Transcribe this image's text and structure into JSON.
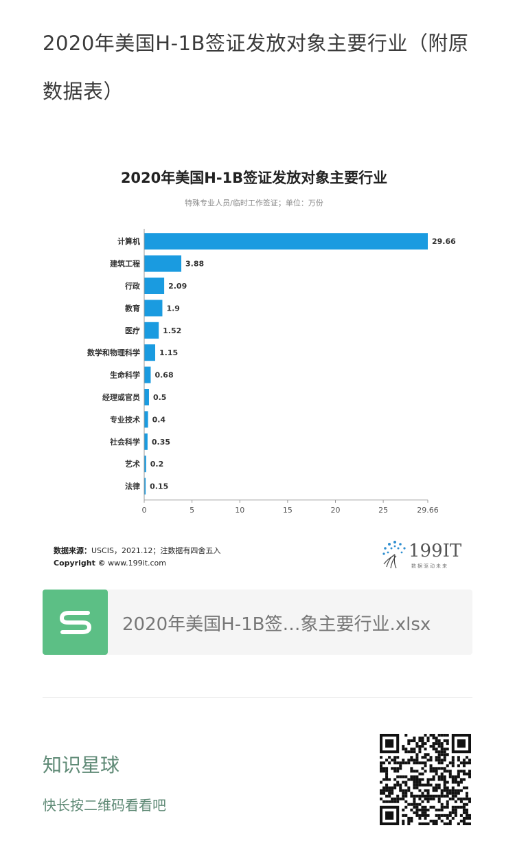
{
  "page": {
    "title": "2020年美国H-1B签证发放对象主要行业（附原数据表）"
  },
  "chart_data": {
    "type": "bar",
    "orientation": "horizontal",
    "title": "2020年美国H-1B签证发放对象主要行业",
    "subtitle": "特殊专业人员/临时工作签证；单位：万份",
    "categories": [
      "计算机",
      "建筑工程",
      "行政",
      "教育",
      "医疗",
      "数学和物理科学",
      "生命科学",
      "经理或官员",
      "专业技术",
      "社会科学",
      "艺术",
      "法律"
    ],
    "values": [
      29.66,
      3.88,
      2.09,
      1.9,
      1.52,
      1.15,
      0.68,
      0.5,
      0.4,
      0.35,
      0.2,
      0.15
    ],
    "value_labels": [
      "29.66",
      "3.88",
      "2.09",
      "1.9",
      "1.52",
      "1.15",
      "0.68",
      "0.5",
      "0.4",
      "0.35",
      "0.2",
      "0.15"
    ],
    "xticks": [
      "0",
      "5",
      "10",
      "15",
      "20",
      "25",
      "29.66"
    ],
    "xlim": [
      0,
      29.66
    ],
    "bar_color": "#1a9be0",
    "grid": false,
    "legend": "none"
  },
  "chart_footer": {
    "source_label": "数据来源：",
    "source_text": "USCIS，2021.12；注数据有四舍五入",
    "copyright_label": "Copyright ©",
    "copyright_text": "www.199it.com",
    "logo_text": "199IT",
    "logo_tagline": "数据驱动未来"
  },
  "attachment": {
    "file_name": "2020年美国H-1B签…象主要行业.xlsx",
    "icon": "spreadsheet-s-icon",
    "icon_color": "#5cbf85"
  },
  "footer": {
    "title": "知识星球",
    "subtitle": "快长按二维码看看吧"
  }
}
